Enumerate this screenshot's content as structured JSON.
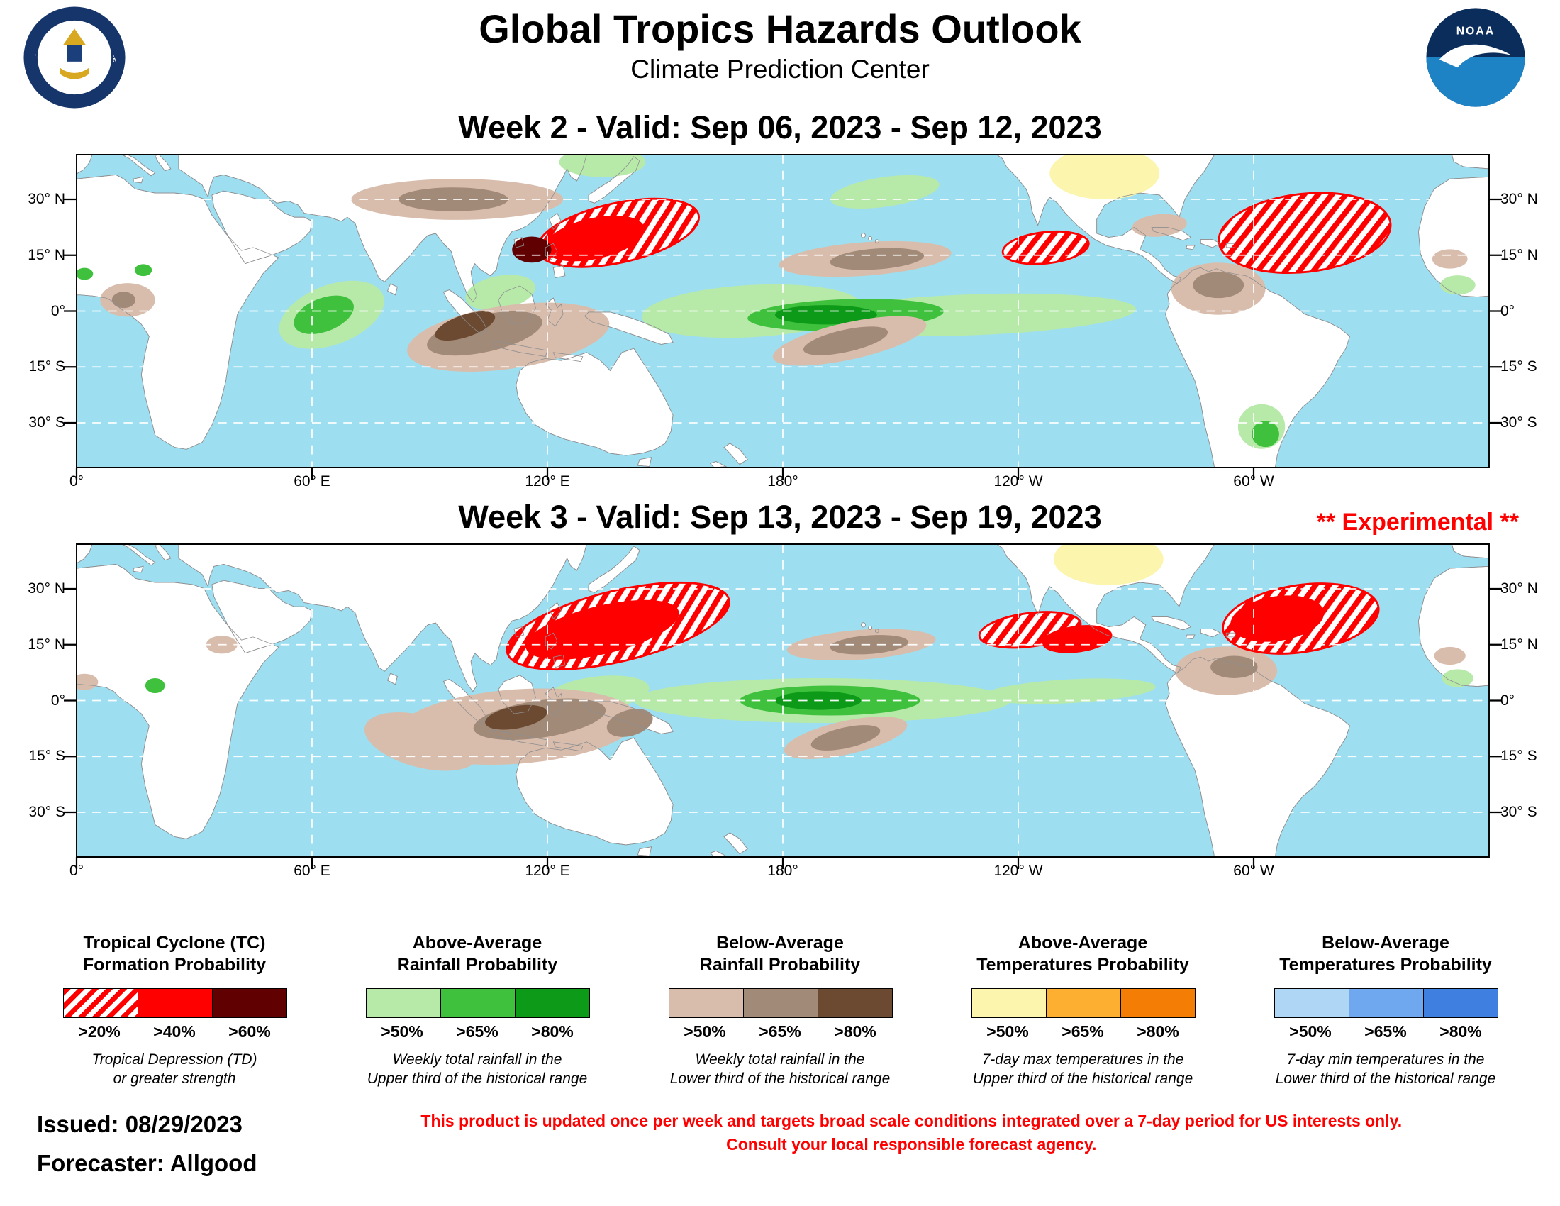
{
  "header": {
    "title": "Global Tropics Hazards Outlook",
    "subtitle": "Climate Prediction Center"
  },
  "logos": {
    "noaa_text": "NOAA",
    "doc_ring_top": "DEPARTMENT OF COMMERCE",
    "doc_ring_bottom": "UNITED STATES OF AMERICA"
  },
  "week2": {
    "title": "Week 2 - Valid: Sep 06, 2023 - Sep 12, 2023"
  },
  "week3": {
    "title": "Week 3 - Valid: Sep 13, 2023 - Sep 19, 2023",
    "experimental": "** Experimental **"
  },
  "map_axes": {
    "lat_labels": [
      "30° N",
      "15° N",
      "0°",
      "15° S",
      "30° S"
    ],
    "lat_values": [
      30,
      15,
      0,
      -15,
      -30
    ],
    "lon_labels": [
      "0°",
      "60° E",
      "120° E",
      "180°",
      "120° W",
      "60° W"
    ],
    "lon_values": [
      0,
      60,
      120,
      180,
      240,
      300
    ]
  },
  "palette": {
    "tc": [
      "hatch",
      "#fe0000",
      "#600000"
    ],
    "rain_above": [
      "#b7e9a9",
      "#3fc13d",
      "#0c9a18"
    ],
    "rain_below": [
      "#d9bdac",
      "#a28a78",
      "#6c4a32"
    ],
    "temp_above": [
      "#fbf5ae",
      "#fcaf31",
      "#f47d06"
    ],
    "temp_below": [
      "#b0d6f5",
      "#6fa8ee",
      "#3f7fe0"
    ]
  },
  "ocean_color": "#9ddff1",
  "legend": [
    {
      "kind": "tc",
      "title": [
        "Tropical Cyclone (TC)",
        "Formation Probability"
      ],
      "labels": [
        ">20%",
        ">40%",
        ">60%"
      ],
      "note": [
        "Tropical Depression (TD)",
        "or greater strength"
      ]
    },
    {
      "kind": "rain_above",
      "title": [
        "Above-Average",
        "Rainfall Probability"
      ],
      "labels": [
        ">50%",
        ">65%",
        ">80%"
      ],
      "note": [
        "Weekly total rainfall in the",
        "Upper third of the historical range"
      ]
    },
    {
      "kind": "rain_below",
      "title": [
        "Below-Average",
        "Rainfall Probability"
      ],
      "labels": [
        ">50%",
        ">65%",
        ">80%"
      ],
      "note": [
        "Weekly total rainfall in the",
        "Lower third of the historical range"
      ]
    },
    {
      "kind": "temp_above",
      "title": [
        "Above-Average",
        "Temperatures Probability"
      ],
      "labels": [
        ">50%",
        ">65%",
        ">80%"
      ],
      "note": [
        "7-day max temperatures in the",
        "Upper third of the historical range"
      ]
    },
    {
      "kind": "temp_below",
      "title": [
        "Below-Average",
        "Temperatures Probability"
      ],
      "labels": [
        ">50%",
        ">65%",
        ">80%"
      ],
      "note": [
        "7-day min temperatures in the",
        "Lower third of the historical range"
      ]
    }
  ],
  "footer": {
    "issued": "Issued: 08/29/2023",
    "forecaster": "Forecaster: Allgood",
    "disclaimer1": "This product is updated once per week and targets broad scale conditions integrated over a 7-day period for US interests only.",
    "disclaimer2": "Consult your local responsible forecast agency."
  },
  "hazards": {
    "week2": [
      {
        "kind": "rain_above",
        "level": 1,
        "lon": 65,
        "lat": -1,
        "rx": 14,
        "ry": 8,
        "rot": -20
      },
      {
        "kind": "rain_above",
        "level": 2,
        "lon": 63,
        "lat": -1,
        "rx": 8,
        "ry": 4.5,
        "rot": -20
      },
      {
        "kind": "rain_above",
        "level": 1,
        "lon": 134,
        "lat": 40,
        "rx": 11,
        "ry": 4,
        "rot": 0
      },
      {
        "kind": "rain_above",
        "level": 1,
        "lon": 206,
        "lat": 32,
        "rx": 14,
        "ry": 4,
        "rot": -8
      },
      {
        "kind": "rain_above",
        "level": 1,
        "lon": 108,
        "lat": 5,
        "rx": 9,
        "ry": 4.5,
        "rot": -10
      },
      {
        "kind": "rain_above",
        "level": 1,
        "lon": 172,
        "lat": 0,
        "rx": 28,
        "ry": 7,
        "rot": -3
      },
      {
        "kind": "rain_above",
        "level": 1,
        "lon": 228,
        "lat": -1,
        "rx": 42,
        "ry": 5.5,
        "rot": -2
      },
      {
        "kind": "rain_above",
        "level": 2,
        "lon": 196,
        "lat": -1,
        "rx": 25,
        "ry": 4.2,
        "rot": -2
      },
      {
        "kind": "rain_above",
        "level": 3,
        "lon": 191,
        "lat": -1,
        "rx": 13,
        "ry": 2.6,
        "rot": 0
      },
      {
        "kind": "rain_above",
        "level": 2,
        "lon": 2,
        "lat": 10,
        "rx": 2.2,
        "ry": 1.6,
        "rot": 0
      },
      {
        "kind": "rain_above",
        "level": 2,
        "lon": 17,
        "lat": 11,
        "rx": 2.2,
        "ry": 1.6,
        "rot": 0
      },
      {
        "kind": "rain_above",
        "level": 1,
        "lon": 352,
        "lat": 7,
        "rx": 4.5,
        "ry": 2.6,
        "rot": 0
      },
      {
        "kind": "rain_above",
        "level": 1,
        "lon": 302,
        "lat": -31,
        "rx": 6,
        "ry": 6,
        "rot": 0
      },
      {
        "kind": "rain_above",
        "level": 2,
        "lon": 303,
        "lat": -33,
        "rx": 3.5,
        "ry": 3.5,
        "rot": 0
      },
      {
        "kind": "rain_below",
        "level": 1,
        "lon": 97,
        "lat": 30,
        "rx": 27,
        "ry": 5.5,
        "rot": 0
      },
      {
        "kind": "rain_below",
        "level": 2,
        "lon": 96,
        "lat": 30,
        "rx": 14,
        "ry": 3.2,
        "rot": 0
      },
      {
        "kind": "rain_below",
        "level": 1,
        "lon": 110,
        "lat": -7,
        "rx": 26,
        "ry": 8.5,
        "rot": -8
      },
      {
        "kind": "rain_below",
        "level": 2,
        "lon": 104,
        "lat": -6,
        "rx": 15,
        "ry": 5,
        "rot": -12
      },
      {
        "kind": "rain_below",
        "level": 3,
        "lon": 99,
        "lat": -4,
        "rx": 8,
        "ry": 3,
        "rot": -18
      },
      {
        "kind": "rain_below",
        "level": 1,
        "lon": 201,
        "lat": 14,
        "rx": 22,
        "ry": 4.5,
        "rot": -4
      },
      {
        "kind": "rain_below",
        "level": 2,
        "lon": 204,
        "lat": 14,
        "rx": 12,
        "ry": 2.8,
        "rot": -4
      },
      {
        "kind": "rain_below",
        "level": 1,
        "lon": 197,
        "lat": -8,
        "rx": 20,
        "ry": 5,
        "rot": -12
      },
      {
        "kind": "rain_below",
        "level": 2,
        "lon": 196,
        "lat": -8,
        "rx": 11,
        "ry": 3,
        "rot": -12
      },
      {
        "kind": "rain_below",
        "level": 1,
        "lon": 291,
        "lat": 6,
        "rx": 12,
        "ry": 7,
        "rot": 0
      },
      {
        "kind": "rain_below",
        "level": 2,
        "lon": 291,
        "lat": 7,
        "rx": 6.5,
        "ry": 3.5,
        "rot": 0
      },
      {
        "kind": "rain_below",
        "level": 1,
        "lon": 276,
        "lat": 23,
        "rx": 7,
        "ry": 3,
        "rot": -5
      },
      {
        "kind": "rain_below",
        "level": 1,
        "lon": 13,
        "lat": 3,
        "rx": 7,
        "ry": 4.5,
        "rot": 0
      },
      {
        "kind": "rain_below",
        "level": 2,
        "lon": 12,
        "lat": 3,
        "rx": 3,
        "ry": 2.2,
        "rot": 0
      },
      {
        "kind": "rain_below",
        "level": 1,
        "lon": 350,
        "lat": 14,
        "rx": 4.5,
        "ry": 2.6,
        "rot": 0
      },
      {
        "kind": "temp_above",
        "level": 1,
        "lon": 262,
        "lat": 37,
        "rx": 14,
        "ry": 7,
        "rot": 0
      },
      {
        "kind": "tc",
        "level": 1,
        "lon": 138,
        "lat": 21,
        "rx": 21,
        "ry": 8,
        "rot": -12
      },
      {
        "kind": "tc",
        "level": 2,
        "lon": 132,
        "lat": 19.5,
        "rx": 13,
        "ry": 5.5,
        "rot": -12
      },
      {
        "kind": "tc",
        "level": 3,
        "lon": 116,
        "lat": 16.5,
        "rx": 5,
        "ry": 3.5,
        "rot": 0
      },
      {
        "kind": "tc",
        "level": 1,
        "lon": 247,
        "lat": 17,
        "rx": 11,
        "ry": 4.2,
        "rot": -6
      },
      {
        "kind": "tc",
        "level": 1,
        "lon": 313,
        "lat": 21,
        "rx": 22,
        "ry": 10.5,
        "rot": -6
      }
    ],
    "week3": [
      {
        "kind": "rain_above",
        "level": 1,
        "lon": 133,
        "lat": 2,
        "rx": 13,
        "ry": 4.5,
        "rot": -6
      },
      {
        "kind": "rain_above",
        "level": 1,
        "lon": 190,
        "lat": 0,
        "rx": 48,
        "ry": 6,
        "rot": 0
      },
      {
        "kind": "rain_above",
        "level": 1,
        "lon": 253,
        "lat": 2.5,
        "rx": 22,
        "ry": 3.2,
        "rot": -3
      },
      {
        "kind": "rain_above",
        "level": 2,
        "lon": 192,
        "lat": 0,
        "rx": 23,
        "ry": 4,
        "rot": 0
      },
      {
        "kind": "rain_above",
        "level": 3,
        "lon": 189,
        "lat": 0,
        "rx": 11,
        "ry": 2.5,
        "rot": 0
      },
      {
        "kind": "rain_above",
        "level": 2,
        "lon": 20,
        "lat": 4,
        "rx": 2.5,
        "ry": 2,
        "rot": 0
      },
      {
        "kind": "rain_above",
        "level": 1,
        "lon": 352,
        "lat": 6,
        "rx": 4,
        "ry": 2.4,
        "rot": 0
      },
      {
        "kind": "rain_below",
        "level": 1,
        "lon": 112,
        "lat": -7,
        "rx": 31,
        "ry": 10,
        "rot": -4
      },
      {
        "kind": "rain_below",
        "level": 1,
        "lon": 88,
        "lat": -11,
        "rx": 15,
        "ry": 7,
        "rot": 14
      },
      {
        "kind": "rain_below",
        "level": 2,
        "lon": 118,
        "lat": -5,
        "rx": 17,
        "ry": 5,
        "rot": -8
      },
      {
        "kind": "rain_below",
        "level": 3,
        "lon": 112,
        "lat": -4.5,
        "rx": 8,
        "ry": 3,
        "rot": -10
      },
      {
        "kind": "rain_below",
        "level": 2,
        "lon": 141,
        "lat": -6,
        "rx": 6,
        "ry": 3.5,
        "rot": -15
      },
      {
        "kind": "rain_below",
        "level": 1,
        "lon": 200,
        "lat": 15,
        "rx": 19,
        "ry": 4,
        "rot": -4
      },
      {
        "kind": "rain_below",
        "level": 2,
        "lon": 202,
        "lat": 15,
        "rx": 10,
        "ry": 2.5,
        "rot": -4
      },
      {
        "kind": "rain_below",
        "level": 1,
        "lon": 196,
        "lat": -10,
        "rx": 16,
        "ry": 4.5,
        "rot": -12
      },
      {
        "kind": "rain_below",
        "level": 2,
        "lon": 196,
        "lat": -10,
        "rx": 9,
        "ry": 2.8,
        "rot": -12
      },
      {
        "kind": "rain_below",
        "level": 1,
        "lon": 293,
        "lat": 8,
        "rx": 13,
        "ry": 6.5,
        "rot": 0
      },
      {
        "kind": "rain_below",
        "level": 2,
        "lon": 295,
        "lat": 9,
        "rx": 6,
        "ry": 3,
        "rot": 0
      },
      {
        "kind": "rain_below",
        "level": 1,
        "lon": 37,
        "lat": 15,
        "rx": 4,
        "ry": 2.4,
        "rot": 0
      },
      {
        "kind": "rain_below",
        "level": 1,
        "lon": 2,
        "lat": 5,
        "rx": 3.5,
        "ry": 2.2,
        "rot": 0
      },
      {
        "kind": "rain_below",
        "level": 1,
        "lon": 350,
        "lat": 12,
        "rx": 4,
        "ry": 2.4,
        "rot": 0
      },
      {
        "kind": "temp_above",
        "level": 1,
        "lon": 263,
        "lat": 38,
        "rx": 14,
        "ry": 7,
        "rot": 0
      },
      {
        "kind": "tc",
        "level": 1,
        "lon": 138,
        "lat": 20,
        "rx": 29,
        "ry": 9.5,
        "rot": -13
      },
      {
        "kind": "tc",
        "level": 2,
        "lon": 134,
        "lat": 19,
        "rx": 20,
        "ry": 6.5,
        "rot": -13
      },
      {
        "kind": "tc",
        "level": 1,
        "lon": 243,
        "lat": 19,
        "rx": 13,
        "ry": 4.5,
        "rot": -7
      },
      {
        "kind": "tc",
        "level": 2,
        "lon": 255,
        "lat": 16.5,
        "rx": 9,
        "ry": 3.6,
        "rot": -7
      },
      {
        "kind": "tc",
        "level": 1,
        "lon": 312,
        "lat": 22,
        "rx": 20,
        "ry": 9,
        "rot": -8
      },
      {
        "kind": "tc",
        "level": 2,
        "lon": 306,
        "lat": 22,
        "rx": 12,
        "ry": 6,
        "rot": -8
      }
    ]
  }
}
